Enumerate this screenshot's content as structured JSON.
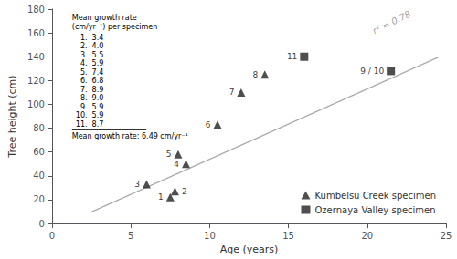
{
  "chart_data": {
    "type": "scatter",
    "xlabel": "Age (years)",
    "ylabel": "Tree height (cm)",
    "xlim": [
      0,
      25
    ],
    "xticks": [
      0,
      5,
      10,
      15,
      20,
      25
    ],
    "ylim": [
      0,
      180
    ],
    "yticks": [
      0,
      20,
      40,
      60,
      80,
      100,
      120,
      140,
      160,
      180
    ],
    "grid": false,
    "legend": "lower right",
    "series": [
      {
        "name": "Kumbelsu Creek specimen",
        "type": "scatter",
        "marker": "triangle",
        "color": "#222222",
        "x": [
          7.5,
          7.8,
          6.0,
          8.5,
          8.0,
          10.5,
          12.0,
          13.5
        ],
        "values": [
          22,
          27,
          33,
          50,
          58,
          83,
          110,
          125
        ],
        "point_labels": [
          "1",
          "2",
          "3",
          "4",
          "5",
          "6",
          "7",
          "8"
        ]
      },
      {
        "name": "Ozernaya Valley specimen",
        "type": "scatter",
        "marker": "square",
        "color": "#222222",
        "x": [
          16.0,
          21.5
        ],
        "values": [
          140,
          128
        ],
        "point_labels": [
          "11",
          "9 / 10"
        ]
      },
      {
        "type": "line",
        "color": "#aaaaaa",
        "x": [
          2.5,
          24.5
        ],
        "values": [
          9.75,
          139.55
        ]
      }
    ],
    "annotations": [
      {
        "text": "r² = 0.78",
        "x": 20.5,
        "y": 158
      }
    ],
    "inset": {
      "title": "Mean growth rate\n(cm/yr⁻¹) per specimen",
      "rows": [
        {
          "num": "1.",
          "rate": "3.4"
        },
        {
          "num": "2.",
          "rate": "4.0"
        },
        {
          "num": "3.",
          "rate": "5.5"
        },
        {
          "num": "4.",
          "rate": "5.9"
        },
        {
          "num": "5.",
          "rate": "7.4"
        },
        {
          "num": "6.",
          "rate": "6.8"
        },
        {
          "num": "7.",
          "rate": "8.9"
        },
        {
          "num": "8.",
          "rate": "9.0"
        },
        {
          "num": "9.",
          "rate": "5.9"
        },
        {
          "num": "10.",
          "rate": "5.9"
        },
        {
          "num": "11.",
          "rate": "8.7"
        }
      ],
      "footer": "Mean growth rate: 6.49 cm/yr⁻¹"
    }
  }
}
